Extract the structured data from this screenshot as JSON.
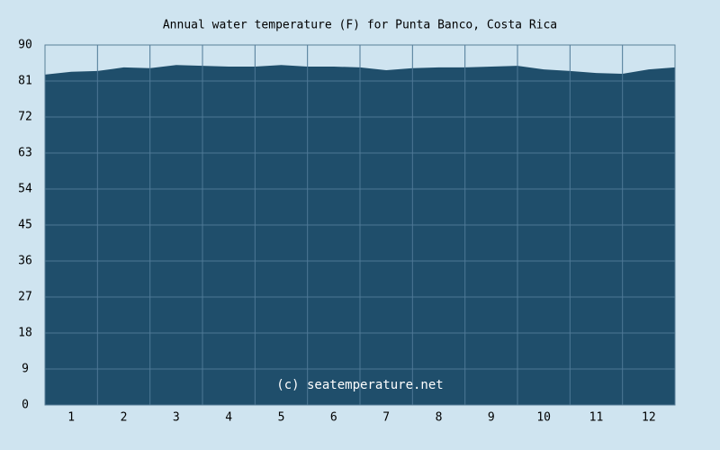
{
  "chart_data": {
    "type": "area",
    "title": "Annual water temperature (F) for Punta Banco, Costa Rica",
    "annotation": "(c) seatemperature.net",
    "x": [
      0,
      0.5,
      1,
      1.5,
      2,
      2.5,
      3,
      3.5,
      4,
      4.5,
      5,
      5.5,
      6,
      6.5,
      7,
      7.5,
      8,
      8.5,
      9,
      9.5,
      10,
      10.5,
      11,
      11.5,
      12
    ],
    "values": [
      82.6,
      83.3,
      83.5,
      84.4,
      84.2,
      85.0,
      84.8,
      84.6,
      84.6,
      85.0,
      84.6,
      84.6,
      84.4,
      83.7,
      84.2,
      84.4,
      84.4,
      84.6,
      84.8,
      83.9,
      83.5,
      83.0,
      82.8,
      83.9,
      84.4
    ],
    "color": "#1f4e6b",
    "xlim": [
      0,
      12
    ],
    "ylim": [
      0,
      90
    ],
    "yticks": [
      0,
      9,
      18,
      27,
      36,
      45,
      54,
      63,
      72,
      81,
      90
    ],
    "xticks": [
      {
        "value": 0.5,
        "label": "1"
      },
      {
        "value": 1.5,
        "label": "2"
      },
      {
        "value": 2.5,
        "label": "3"
      },
      {
        "value": 3.5,
        "label": "4"
      },
      {
        "value": 4.5,
        "label": "5"
      },
      {
        "value": 5.5,
        "label": "6"
      },
      {
        "value": 6.5,
        "label": "7"
      },
      {
        "value": 7.5,
        "label": "8"
      },
      {
        "value": 8.5,
        "label": "9"
      },
      {
        "value": 9.5,
        "label": "10"
      },
      {
        "value": 10.5,
        "label": "11"
      },
      {
        "value": 11.5,
        "label": "12"
      }
    ],
    "grid": true
  }
}
